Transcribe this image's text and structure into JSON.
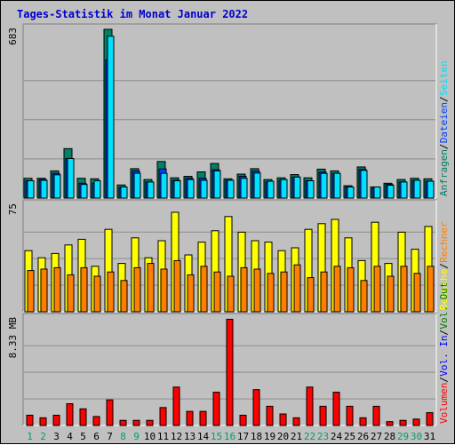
{
  "title": "Tages-Statistik im Monat Januar 2022",
  "chart_data": [
    {
      "type": "bar",
      "panel": "requests-files-pages",
      "ymax_label": "683",
      "ylim": [
        0,
        683
      ],
      "categories": [
        "1",
        "2",
        "3",
        "4",
        "5",
        "6",
        "7",
        "8",
        "9",
        "10",
        "11",
        "12",
        "13",
        "14",
        "15",
        "16",
        "17",
        "18",
        "19",
        "20",
        "21",
        "22",
        "23",
        "24",
        "25",
        "26",
        "27",
        "28",
        "29",
        "30",
        "31"
      ],
      "weekend_days": [
        "1",
        "2",
        "8",
        "9",
        "15",
        "16",
        "22",
        "23",
        "29",
        "30"
      ],
      "legend": [
        {
          "label": "Anfragen",
          "color": "#008066"
        },
        {
          "label": "Dateien",
          "color": "#0040ff"
        },
        {
          "label": "Seiten",
          "color": "#00e0ff"
        }
      ],
      "series": [
        {
          "name": "Anfragen",
          "values": [
            80,
            80,
            110,
            200,
            80,
            78,
            683,
            53,
            119,
            75,
            148,
            82,
            88,
            106,
            140,
            78,
            97,
            119,
            75,
            82,
            95,
            82,
            117,
            110,
            50,
            126,
            45,
            60,
            75,
            80,
            78
          ]
        },
        {
          "name": "Dateien",
          "values": [
            70,
            75,
            100,
            160,
            60,
            60,
            560,
            43,
            110,
            65,
            118,
            72,
            80,
            80,
            115,
            72,
            88,
            109,
            65,
            72,
            85,
            70,
            105,
            100,
            45,
            116,
            40,
            55,
            65,
            70,
            68
          ]
        },
        {
          "name": "Seiten",
          "values": [
            70,
            72,
            94,
            160,
            55,
            70,
            655,
            45,
            100,
            65,
            100,
            70,
            75,
            72,
            110,
            72,
            80,
            101,
            68,
            75,
            85,
            70,
            100,
            100,
            45,
            112,
            45,
            52,
            65,
            72,
            68
          ]
        }
      ]
    },
    {
      "type": "bar",
      "panel": "visits-hosts",
      "ymax_label": "75",
      "ylim": [
        0,
        75
      ],
      "categories": [
        "1",
        "2",
        "3",
        "4",
        "5",
        "6",
        "7",
        "8",
        "9",
        "10",
        "11",
        "12",
        "13",
        "14",
        "15",
        "16",
        "17",
        "18",
        "19",
        "20",
        "21",
        "22",
        "23",
        "24",
        "25",
        "26",
        "27",
        "28",
        "29",
        "30",
        "31"
      ],
      "legend": [
        {
          "label": "Besuche",
          "color": "#ffff00"
        },
        {
          "label": "Rechner",
          "color": "#ff8000"
        }
      ],
      "series": [
        {
          "name": "Besuche",
          "values": [
            43,
            38,
            41,
            47,
            51,
            32,
            58,
            34,
            52,
            38,
            50,
            70,
            40,
            49,
            57,
            67,
            56,
            50,
            49,
            43,
            45,
            58,
            62,
            65,
            52,
            36,
            63,
            34,
            56,
            44,
            60
          ]
        },
        {
          "name": "Rechner",
          "values": [
            29,
            30,
            31,
            26,
            31,
            25,
            28,
            22,
            31,
            34,
            30,
            36,
            26,
            32,
            28,
            25,
            31,
            30,
            27,
            28,
            33,
            24,
            28,
            32,
            31,
            22,
            32,
            25,
            32,
            27,
            32
          ]
        }
      ]
    },
    {
      "type": "bar",
      "panel": "volume",
      "ymax_label": "8.33 MB",
      "ylim": [
        0,
        8.33
      ],
      "categories": [
        "1",
        "2",
        "3",
        "4",
        "5",
        "6",
        "7",
        "8",
        "9",
        "10",
        "11",
        "12",
        "13",
        "14",
        "15",
        "16",
        "17",
        "18",
        "19",
        "20",
        "21",
        "22",
        "23",
        "24",
        "25",
        "26",
        "27",
        "28",
        "29",
        "30",
        "31"
      ],
      "legend": [
        {
          "label": "Volumen",
          "color": "#ff0000"
        },
        {
          "label": "Vol. In",
          "color": "#0000ff"
        },
        {
          "label": "Vol. Out",
          "color": "#008000"
        }
      ],
      "series": [
        {
          "name": "Volumen",
          "values": [
            0.8,
            0.6,
            0.8,
            1.7,
            1.3,
            0.7,
            2.0,
            0.4,
            0.4,
            0.4,
            1.4,
            3.0,
            1.1,
            1.1,
            2.6,
            8.3,
            0.8,
            2.8,
            1.5,
            0.9,
            0.6,
            3.0,
            1.5,
            2.6,
            1.5,
            0.6,
            1.5,
            0.3,
            0.4,
            0.5,
            1.0
          ]
        }
      ]
    }
  ]
}
